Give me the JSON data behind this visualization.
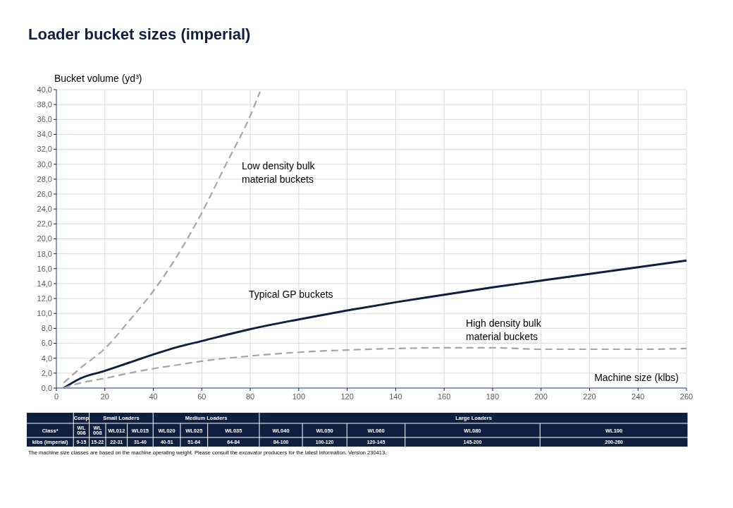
{
  "chart_data": [
    {
      "type": "line",
      "title": "Loader bucket sizes (imperial)",
      "ylabel": "Bucket volume (yd³)",
      "xlabel": "Machine size (klbs)",
      "xlim": [
        0,
        260
      ],
      "xticks": [
        0,
        20,
        40,
        60,
        80,
        100,
        120,
        140,
        160,
        180,
        200,
        220,
        240,
        260
      ],
      "ylim": [
        0,
        40
      ],
      "yticks": [
        {
          "value": 0,
          "label": "0,0"
        },
        {
          "value": 2,
          "label": "2,0"
        },
        {
          "value": 4,
          "label": "4,0"
        },
        {
          "value": 6,
          "label": "6,0"
        },
        {
          "value": 8,
          "label": "8,0"
        },
        {
          "value": 10,
          "label": "10,0"
        },
        {
          "value": 12,
          "label": "12,0"
        },
        {
          "value": 14,
          "label": "14,0"
        },
        {
          "value": 16,
          "label": "16,0"
        },
        {
          "value": 18,
          "label": "18,0"
        },
        {
          "value": 20,
          "label": "20,0"
        },
        {
          "value": 22,
          "label": "22,0"
        },
        {
          "value": 24,
          "label": "24,0"
        },
        {
          "value": 26,
          "label": "26,0"
        },
        {
          "value": 28,
          "label": "28,0"
        },
        {
          "value": 30,
          "label": "30,0"
        },
        {
          "value": 32,
          "label": "32,0"
        },
        {
          "value": 34,
          "label": "34,0"
        },
        {
          "value": 36,
          "label": "36,0"
        },
        {
          "value": 38,
          "label": "38,0"
        },
        {
          "value": 40,
          "label": "40,0"
        }
      ],
      "grid": true,
      "series": [
        {
          "name": "Low density bulk material buckets",
          "color": "#a6a6a6",
          "line_style": "dashed",
          "x": [
            3,
            10,
            20,
            30,
            40,
            50,
            60,
            70,
            80,
            84
          ],
          "values": [
            0.7,
            2.7,
            5.3,
            9,
            13,
            17.8,
            23.5,
            30,
            36.5,
            39.7
          ]
        },
        {
          "name": "Typical GP buckets",
          "color": "#0f1f40",
          "line_style": "solid",
          "x": [
            3,
            10,
            20,
            30,
            40,
            50,
            60,
            80,
            100,
            120,
            140,
            160,
            180,
            200,
            220,
            240,
            260
          ],
          "values": [
            0,
            1.3,
            2.3,
            3.4,
            4.5,
            5.5,
            6.3,
            7.9,
            9.2,
            10.4,
            11.5,
            12.5,
            13.5,
            14.4,
            15.3,
            16.2,
            17.1
          ]
        },
        {
          "name": "High density bulk material buckets",
          "color": "#a6a6a6",
          "line_style": "dashed",
          "x": [
            3,
            10,
            20,
            30,
            40,
            50,
            60,
            80,
            100,
            120,
            140,
            160,
            180,
            200,
            220,
            240,
            260
          ],
          "values": [
            0,
            0.7,
            1.3,
            2,
            2.6,
            3.1,
            3.6,
            4.3,
            4.8,
            5.1,
            5.3,
            5.4,
            5.4,
            5.2,
            5.2,
            5.2,
            5.3
          ]
        }
      ],
      "annotations": [
        "The machine size classes are based on the machine operating weight. Please consult the excavator producers for the latest information. Version 230413."
      ]
    },
    {
      "type": "other",
      "categories": [
        "WL 006",
        "WL 008",
        "WL012",
        "WL015",
        "WL020",
        "WL025",
        "WL035",
        "WL040",
        "WL050",
        "WL060",
        "WL080",
        "WL100"
      ],
      "annotations": [
        "Comp",
        "Small Loaders",
        "Medium Loaders",
        "Large Loaders",
        "Class*",
        "klbs (imperial)",
        "9-15",
        "15-22",
        "22-31",
        "31-40",
        "40-51",
        "51-64",
        "64-84",
        "84-100",
        "100-120",
        "120-145",
        "145-200",
        "200-260"
      ]
    }
  ]
}
